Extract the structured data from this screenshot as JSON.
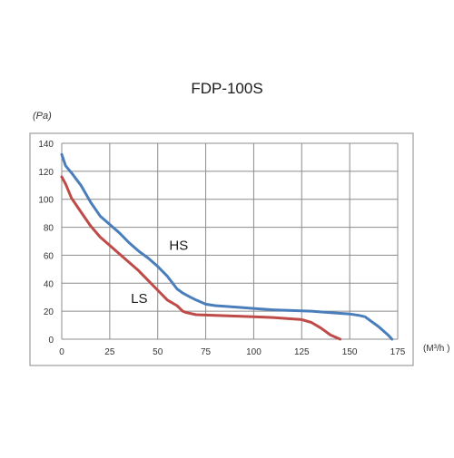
{
  "chart_data": {
    "type": "line",
    "title": "FDP-100S",
    "ylabel": "(Pa)",
    "xlabel": "(M³/h )",
    "xlim": [
      0,
      175
    ],
    "ylim": [
      0,
      140
    ],
    "x_ticks": [
      0,
      25,
      50,
      75,
      100,
      125,
      150,
      175
    ],
    "y_ticks": [
      0,
      20,
      40,
      60,
      80,
      100,
      120,
      140
    ],
    "grid": true,
    "legend": "none",
    "series": [
      {
        "name": "HS",
        "color": "#4a7ebb",
        "points": [
          [
            0,
            132
          ],
          [
            2,
            124
          ],
          [
            5,
            119
          ],
          [
            10,
            110
          ],
          [
            15,
            98
          ],
          [
            20,
            88
          ],
          [
            25,
            82
          ],
          [
            30,
            76
          ],
          [
            35,
            69
          ],
          [
            40,
            63
          ],
          [
            45,
            58
          ],
          [
            50,
            52
          ],
          [
            55,
            45
          ],
          [
            60,
            36
          ],
          [
            63,
            33
          ],
          [
            67,
            30
          ],
          [
            70,
            28
          ],
          [
            75,
            25
          ],
          [
            80,
            24
          ],
          [
            90,
            23
          ],
          [
            100,
            22
          ],
          [
            110,
            21
          ],
          [
            120,
            20.5
          ],
          [
            130,
            20
          ],
          [
            140,
            19
          ],
          [
            150,
            18
          ],
          [
            155,
            17
          ],
          [
            158,
            16
          ],
          [
            160,
            14
          ],
          [
            165,
            9
          ],
          [
            170,
            3
          ],
          [
            172,
            0
          ]
        ]
      },
      {
        "name": "LS",
        "color": "#be4b48",
        "points": [
          [
            0,
            116
          ],
          [
            2,
            111
          ],
          [
            5,
            101
          ],
          [
            10,
            91
          ],
          [
            15,
            81
          ],
          [
            20,
            73
          ],
          [
            25,
            67
          ],
          [
            30,
            61
          ],
          [
            35,
            55
          ],
          [
            40,
            49
          ],
          [
            45,
            42
          ],
          [
            50,
            35
          ],
          [
            55,
            28
          ],
          [
            60,
            24
          ],
          [
            63,
            20
          ],
          [
            65,
            19
          ],
          [
            70,
            17.5
          ],
          [
            80,
            17
          ],
          [
            90,
            16.5
          ],
          [
            100,
            16
          ],
          [
            110,
            15.5
          ],
          [
            120,
            14.5
          ],
          [
            125,
            14
          ],
          [
            130,
            12
          ],
          [
            135,
            8
          ],
          [
            140,
            3
          ],
          [
            145,
            0
          ]
        ]
      }
    ]
  }
}
